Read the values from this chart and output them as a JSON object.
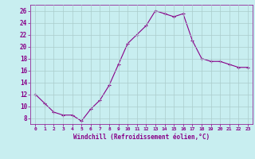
{
  "x": [
    0,
    1,
    2,
    3,
    4,
    5,
    6,
    7,
    8,
    9,
    10,
    11,
    12,
    13,
    14,
    15,
    16,
    17,
    18,
    19,
    20,
    21,
    22,
    23
  ],
  "y": [
    12,
    10.5,
    9,
    8.5,
    8.5,
    7.5,
    9.5,
    11,
    13.5,
    17,
    20.5,
    22,
    23.5,
    26,
    25.5,
    25,
    25.5,
    21,
    18,
    17.5,
    17.5,
    17,
    16.5,
    16.5
  ],
  "line_color": "#880088",
  "marker": "+",
  "bg_color": "#c8eef0",
  "grid_color": "#aacccc",
  "xlabel": "Windchill (Refroidissement éolien,°C)",
  "xlabel_color": "#880088",
  "tick_color": "#880088",
  "ylim": [
    7,
    27
  ],
  "xlim": [
    -0.5,
    23.5
  ],
  "yticks": [
    8,
    10,
    12,
    14,
    16,
    18,
    20,
    22,
    24,
    26
  ],
  "xticks": [
    0,
    1,
    2,
    3,
    4,
    5,
    6,
    7,
    8,
    9,
    10,
    11,
    12,
    13,
    14,
    15,
    16,
    17,
    18,
    19,
    20,
    21,
    22,
    23
  ]
}
